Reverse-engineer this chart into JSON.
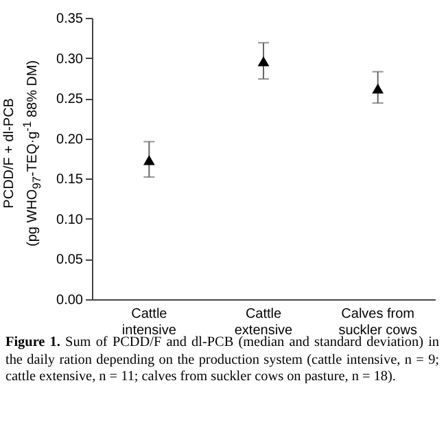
{
  "chart_data": {
    "type": "scatter",
    "ylabel": "PCDD/F + dl-PCB\n(pg WHO$_{97}$-TEQ·g$^{-1}$ 88% DM)",
    "categories": [
      "Cattle intensive",
      "Cattle extensive",
      "Calves from suckler cows"
    ],
    "series": [
      {
        "color": "#000000",
        "values": [
          0.173,
          0.296,
          0.262
        ],
        "errors": [
          [
            0.152,
            0.196
          ],
          [
            0.274,
            0.319
          ],
          [
            0.244,
            0.283
          ]
        ]
      }
    ],
    "marker": "triangle",
    "ylim": [
      0,
      0.35
    ],
    "yticks": [
      {
        "value": 0,
        "label": "0.00"
      },
      {
        "value": 0.05,
        "label": "0.05"
      },
      {
        "value": 0.1,
        "label": "0.10"
      },
      {
        "value": 0.15,
        "label": "0.15"
      },
      {
        "value": 0.2,
        "label": "0.20"
      },
      {
        "value": 0.25,
        "label": "0.25"
      },
      {
        "value": 0.3,
        "label": "0.30"
      },
      {
        "value": 0.35,
        "label": "0.35"
      }
    ],
    "annotations": [
      "Figure 1. Sum of PCDD/F and dl-PCB (median and standard deviation) in the daily ration depending on the production system (cattle intensive, n = 9; cattle extensive, n = 11; calves from suckler cows on pasture, n = 18)."
    ]
  }
}
